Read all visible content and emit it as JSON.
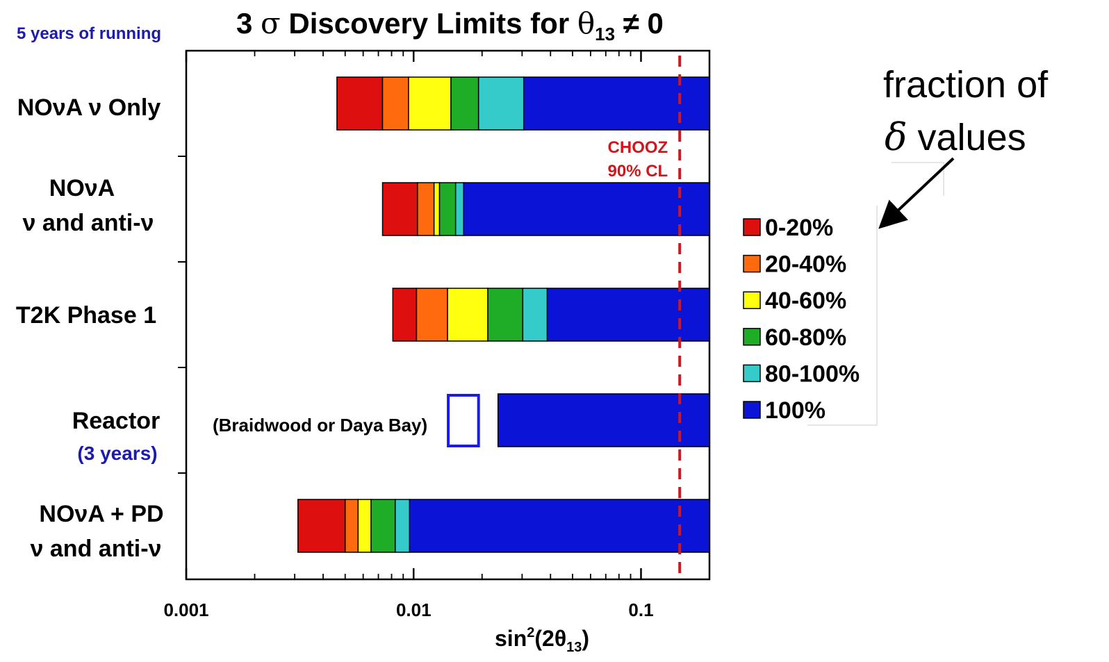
{
  "header": {
    "subtitle": "5 years of running",
    "title_prefix": "3",
    "title_sigma": "σ",
    "title_main": " Discovery Limits for ",
    "title_theta": "θ",
    "title_sub": "13",
    "title_tail": " ≠ 0"
  },
  "axis": {
    "xlabel_prefix": "sin",
    "xlabel_sup": "2",
    "xlabel_mid": "(2θ",
    "xlabel_sub": "13",
    "xlabel_tail": ")",
    "tick_labels": [
      "0.001",
      "0.01",
      "0.1"
    ]
  },
  "annotations": {
    "chooz_line1": "CHOOZ",
    "chooz_line2": "90% CL",
    "reactor_note": "(Braidwood or Daya Bay)",
    "side_line1": "fraction of",
    "side_delta": "δ",
    "side_line2": " values"
  },
  "rows": [
    {
      "label_lines": [
        "NOνA ν Only"
      ],
      "sub_label": ""
    },
    {
      "label_lines": [
        "NOνA",
        "ν and anti-ν"
      ],
      "sub_label": ""
    },
    {
      "label_lines": [
        "T2K Phase 1"
      ],
      "sub_label": ""
    },
    {
      "label_lines": [
        "Reactor"
      ],
      "sub_label": "(3 years)"
    },
    {
      "label_lines": [
        "NOνA + PD",
        "ν and anti-ν"
      ],
      "sub_label": ""
    }
  ],
  "legend": [
    {
      "label": "0-20%",
      "color": "#dd0f0f"
    },
    {
      "label": "20-40%",
      "color": "#ff6a0e"
    },
    {
      "label": "40-60%",
      "color": "#ffff10"
    },
    {
      "label": "60-80%",
      "color": "#1fad27"
    },
    {
      "label": "80-100%",
      "color": "#35cbcb"
    },
    {
      "label": "100%",
      "color": "#0b14d6"
    }
  ],
  "colors": {
    "title_blue": "#1b1bb3",
    "chooz_red": "#d4161c",
    "reactor_box": "#1a1af0"
  },
  "chart_data": {
    "type": "bar",
    "orientation": "horizontal-stacked",
    "x_scale": "log",
    "xlim": [
      0.001,
      0.2
    ],
    "x_ticks": [
      0.001,
      0.01,
      0.1
    ],
    "title": "3 σ Discovery Limits for θ13 ≠ 0",
    "xlabel": "sin²(2θ13)",
    "categories": [
      "NOνA ν Only",
      "NOνA ν and anti-ν",
      "T2K Phase 1",
      "Reactor (3 years)",
      "NOνA + PD ν and anti-ν"
    ],
    "segment_names": [
      "0-20%",
      "20-40%",
      "40-60%",
      "60-80%",
      "80-100%",
      "100%"
    ],
    "segment_boundaries": [
      [
        0.0046,
        0.0073,
        0.0095,
        0.0146,
        0.0193,
        0.0305,
        0.2
      ],
      [
        0.0073,
        0.0104,
        0.0123,
        0.013,
        0.0153,
        0.0166,
        0.2
      ],
      [
        0.0081,
        0.0103,
        0.0141,
        0.0212,
        0.0302,
        0.0387,
        0.2
      ],
      [
        0.0235,
        0.0235,
        0.0235,
        0.0235,
        0.0235,
        0.0235,
        0.2
      ],
      [
        0.0031,
        0.005,
        0.0057,
        0.0065,
        0.0083,
        0.0096,
        0.2
      ]
    ],
    "chooz_limit": 0.148,
    "reactor_marker_range": [
      0.0142,
      0.0193
    ],
    "grid": false
  }
}
